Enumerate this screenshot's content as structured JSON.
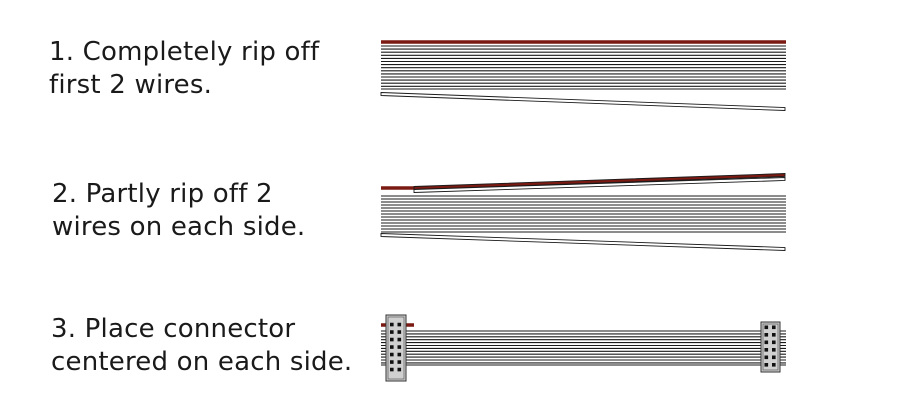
{
  "steps": [
    {
      "number": 1,
      "text": "1. Completely rip off\nfirst 2 wires."
    },
    {
      "number": 2,
      "text": "2. Partly rip off 2\nwires on each side."
    },
    {
      "number": 3,
      "text": "3. Place connector\ncentered on each side."
    }
  ],
  "colors": {
    "wire": "#1a1a1a",
    "marker_wire": "#7a1a12",
    "connector_body": "#d0d0d0",
    "pin": "#111111"
  }
}
